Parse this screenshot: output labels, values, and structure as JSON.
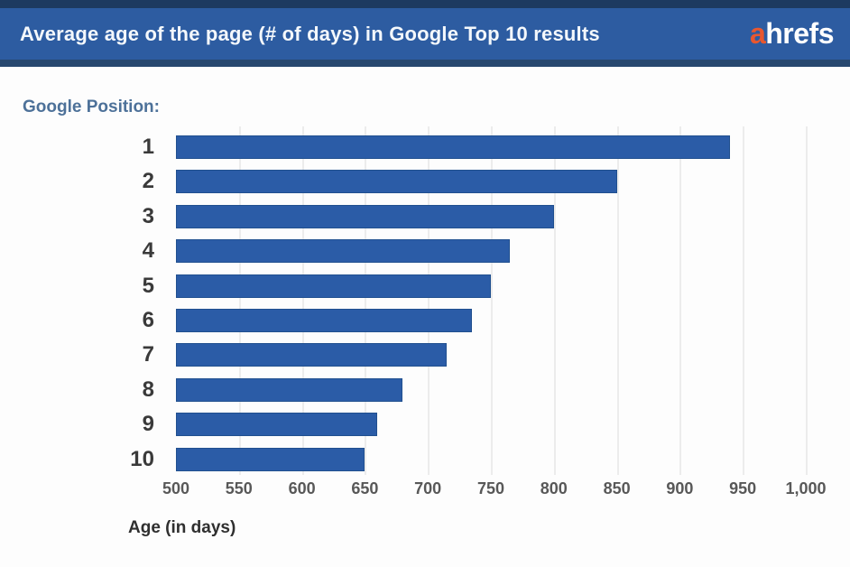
{
  "header": {
    "title": "Average age of the page (# of days) in Google Top 10 results",
    "logo": {
      "a": "a",
      "rest": "hrefs"
    }
  },
  "colors": {
    "header_background": "#2d5ca1",
    "header_top_strip": "#1d3a60",
    "header_bottom_strip": "#27486f",
    "title_text": "#f4f8fc",
    "logo_a": "#e8572f",
    "logo_rest": "#ffffff",
    "bar_fill": "#2b5ca7",
    "bar_edge": "#21508f",
    "gridline": "#ececec",
    "group_label_text": "#4d7199",
    "tick_text": "#585858",
    "category_text": "#3a3a3a"
  },
  "chart_data": {
    "type": "bar",
    "orientation": "horizontal",
    "title": "Average age of the page (# of days) in Google Top 10 results",
    "group_label": "Google Position:",
    "categories": [
      "1",
      "2",
      "3",
      "4",
      "5",
      "6",
      "7",
      "8",
      "9",
      "10"
    ],
    "values": [
      940,
      850,
      800,
      765,
      750,
      735,
      715,
      680,
      660,
      650
    ],
    "unit": "days",
    "xlabel": "Age (in days)",
    "xlim": [
      500,
      1000
    ],
    "xticks": [
      500,
      550,
      600,
      650,
      700,
      750,
      800,
      850,
      900,
      950,
      1000
    ],
    "xtick_labels": [
      "500",
      "550",
      "600",
      "650",
      "700",
      "750",
      "800",
      "850",
      "900",
      "950",
      "1,000"
    ],
    "grid": "vertical",
    "legend": "none"
  }
}
